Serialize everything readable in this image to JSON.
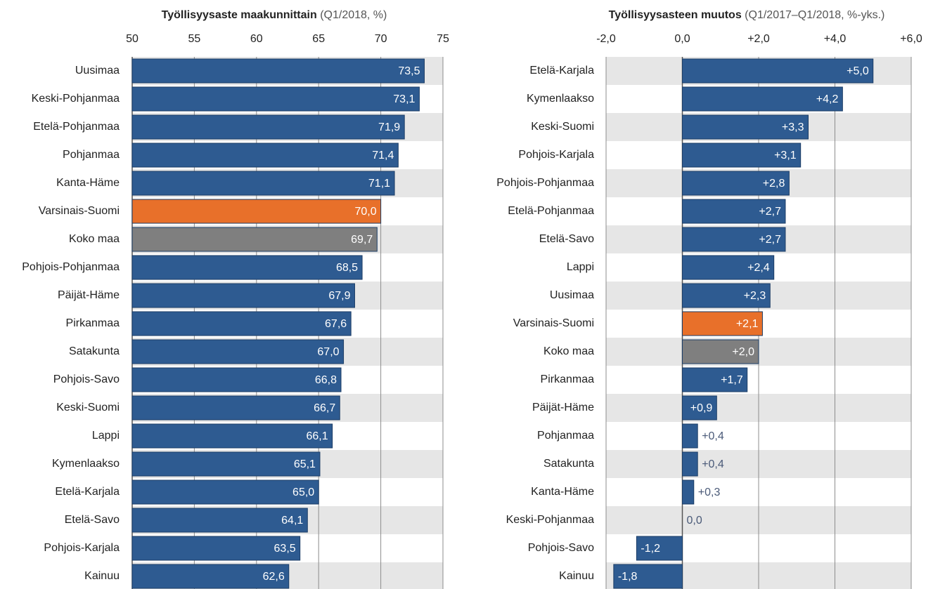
{
  "chart_data": [
    {
      "type": "barh",
      "title": "Työllisyysaste maakunnittain",
      "subtitle": "(Q1/2018, %)",
      "categories": [
        "Uusimaa",
        "Keski-Pohjanmaa",
        "Etelä-Pohjanmaa",
        "Pohjanmaa",
        "Kanta-Häme",
        "Varsinais-Suomi",
        "Koko maa",
        "Pohjois-Pohjanmaa",
        "Päijät-Häme",
        "Pirkanmaa",
        "Satakunta",
        "Pohjois-Savo",
        "Keski-Suomi",
        "Lappi",
        "Kymenlaakso",
        "Etelä-Karjala",
        "Etelä-Savo",
        "Pohjois-Karjala",
        "Kainuu"
      ],
      "values": [
        73.5,
        73.1,
        71.9,
        71.4,
        71.1,
        70.0,
        69.7,
        68.5,
        67.9,
        67.6,
        67.0,
        66.8,
        66.7,
        66.1,
        65.1,
        65.0,
        64.1,
        63.5,
        62.6
      ],
      "value_labels": [
        "73,5",
        "73,1",
        "71,9",
        "71,4",
        "71,1",
        "70,0",
        "69,7",
        "68,5",
        "67,9",
        "67,6",
        "67,0",
        "66,8",
        "66,7",
        "66,1",
        "65,1",
        "65,0",
        "64,1",
        "63,5",
        "62,6"
      ],
      "colors": [
        "#2e5b91",
        "#2e5b91",
        "#2e5b91",
        "#2e5b91",
        "#2e5b91",
        "#e8702a",
        "#7f7f7f",
        "#2e5b91",
        "#2e5b91",
        "#2e5b91",
        "#2e5b91",
        "#2e5b91",
        "#2e5b91",
        "#2e5b91",
        "#2e5b91",
        "#2e5b91",
        "#2e5b91",
        "#2e5b91",
        "#2e5b91"
      ],
      "xlim": [
        50,
        75
      ],
      "xticks": [
        50,
        55,
        60,
        65,
        70,
        75
      ],
      "grid": true
    },
    {
      "type": "barh",
      "title": "Työllisyysasteen muutos",
      "subtitle": "(Q1/2017–Q1/2018, %-yks.)",
      "categories": [
        "Etelä-Karjala",
        "Kymenlaakso",
        "Keski-Suomi",
        "Pohjois-Karjala",
        "Pohjois-Pohjanmaa",
        "Etelä-Pohjanmaa",
        "Etelä-Savo",
        "Lappi",
        "Uusimaa",
        "Varsinais-Suomi",
        "Koko maa",
        "Pirkanmaa",
        "Päijät-Häme",
        "Pohjanmaa",
        "Satakunta",
        "Kanta-Häme",
        "Keski-Pohjanmaa",
        "Pohjois-Savo",
        "Kainuu"
      ],
      "values": [
        5.0,
        4.2,
        3.3,
        3.1,
        2.8,
        2.7,
        2.7,
        2.4,
        2.3,
        2.1,
        2.0,
        1.7,
        0.9,
        0.4,
        0.4,
        0.3,
        0.0,
        -1.2,
        -1.8
      ],
      "value_labels": [
        "+5,0",
        "+4,2",
        "+3,3",
        "+3,1",
        "+2,8",
        "+2,7",
        "+2,7",
        "+2,4",
        "+2,3",
        "+2,1",
        "+2,0",
        "+1,7",
        "+0,9",
        "+0,4",
        "+0,4",
        "+0,3",
        "0,0",
        "-1,2",
        "-1,8"
      ],
      "colors": [
        "#2e5b91",
        "#2e5b91",
        "#2e5b91",
        "#2e5b91",
        "#2e5b91",
        "#2e5b91",
        "#2e5b91",
        "#2e5b91",
        "#2e5b91",
        "#e8702a",
        "#7f7f7f",
        "#2e5b91",
        "#2e5b91",
        "#2e5b91",
        "#2e5b91",
        "#2e5b91",
        "#2e5b91",
        "#2e5b91",
        "#2e5b91"
      ],
      "xlim": [
        -2,
        6
      ],
      "xticks": [
        {
          "value": -2,
          "label": "-2,0"
        },
        {
          "value": 0,
          "label": "0,0"
        },
        {
          "value": 2,
          "label": "+2,0"
        },
        {
          "value": 4,
          "label": "+4,0"
        },
        {
          "value": 6,
          "label": "+6,0"
        }
      ],
      "grid": true
    }
  ]
}
